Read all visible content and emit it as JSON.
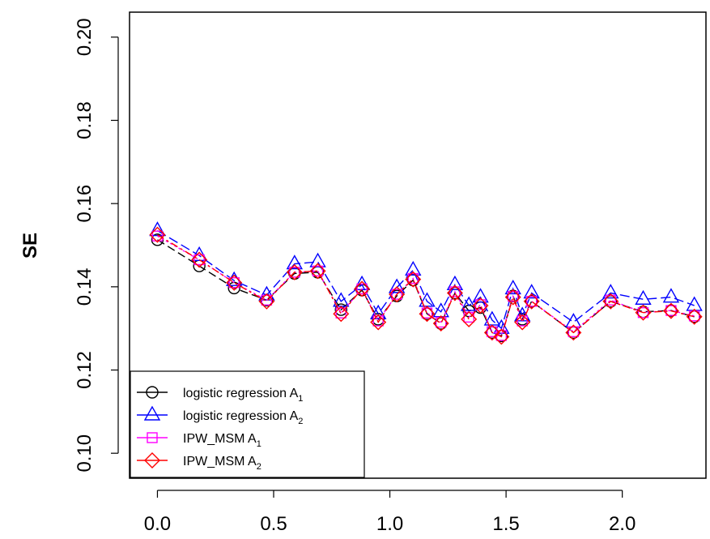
{
  "chart_data": {
    "type": "line",
    "xlabel": "",
    "ylabel": "SE",
    "xlim": [
      -0.12,
      2.36
    ],
    "ylim": [
      0.094,
      0.206
    ],
    "x_ticks": [
      "0.0",
      "0.5",
      "1.0",
      "1.5",
      "2.0"
    ],
    "x_tick_values": [
      0.0,
      0.5,
      1.0,
      1.5,
      2.0
    ],
    "y_ticks": [
      "0.10",
      "0.12",
      "0.14",
      "0.16",
      "0.18",
      "0.20"
    ],
    "y_tick_values": [
      0.1,
      0.12,
      0.14,
      0.16,
      0.18,
      0.2
    ],
    "grid": false,
    "legend_position": "bottom-left",
    "x": [
      0.0,
      0.18,
      0.33,
      0.47,
      0.59,
      0.69,
      0.79,
      0.88,
      0.95,
      1.03,
      1.1,
      1.16,
      1.22,
      1.28,
      1.34,
      1.39,
      1.44,
      1.48,
      1.53,
      1.57,
      1.61,
      1.79,
      1.95,
      2.09,
      2.21,
      2.31
    ],
    "series": [
      {
        "name": "logistic regression  A",
        "sub": "1",
        "color": "#000000",
        "marker": "circle",
        "values": [
          0.1513,
          0.145,
          0.1397,
          0.1368,
          0.1432,
          0.1435,
          0.1345,
          0.1392,
          0.1322,
          0.1378,
          0.1416,
          0.1335,
          0.1312,
          0.1385,
          0.1342,
          0.135,
          0.129,
          0.1282,
          0.1378,
          0.1322,
          0.1365,
          0.129,
          0.1365,
          0.134,
          0.1343,
          0.1328
        ]
      },
      {
        "name": "logistic regression  A",
        "sub": "2",
        "color": "#0000ff",
        "marker": "triangle",
        "values": [
          0.1535,
          0.1475,
          0.1415,
          0.138,
          0.1455,
          0.146,
          0.1365,
          0.1405,
          0.1335,
          0.1398,
          0.144,
          0.1365,
          0.134,
          0.1405,
          0.1355,
          0.1375,
          0.132,
          0.13,
          0.1395,
          0.133,
          0.1385,
          0.1315,
          0.1385,
          0.137,
          0.1375,
          0.1355
        ]
      },
      {
        "name": "IPW_MSM  A",
        "sub": "1",
        "color": "#ff00ff",
        "marker": "square",
        "values": [
          0.1522,
          0.1465,
          0.141,
          0.1368,
          0.1435,
          0.1438,
          0.1337,
          0.1395,
          0.1318,
          0.1382,
          0.142,
          0.1337,
          0.1315,
          0.1388,
          0.1327,
          0.1357,
          0.1292,
          0.1283,
          0.1377,
          0.1318,
          0.1365,
          0.1292,
          0.1368,
          0.1338,
          0.1343,
          0.133
        ]
      },
      {
        "name": "IPW_MSM  A",
        "sub": "2",
        "color": "#ff0000",
        "marker": "diamond",
        "values": [
          0.1525,
          0.1465,
          0.141,
          0.1365,
          0.1435,
          0.1438,
          0.1335,
          0.1395,
          0.1315,
          0.1382,
          0.1418,
          0.1335,
          0.1312,
          0.1385,
          0.1322,
          0.1355,
          0.129,
          0.128,
          0.1375,
          0.1315,
          0.1365,
          0.129,
          0.1365,
          0.1338,
          0.1342,
          0.1328
        ]
      }
    ]
  }
}
